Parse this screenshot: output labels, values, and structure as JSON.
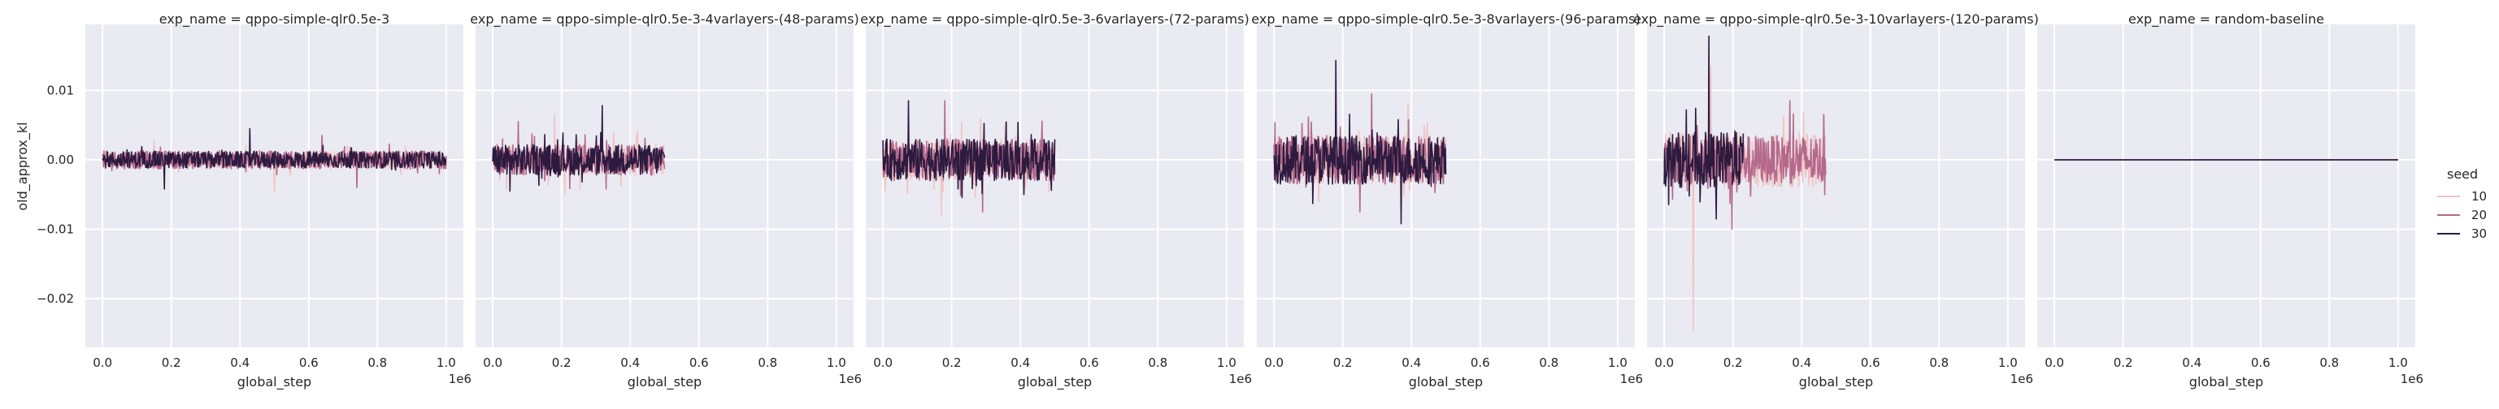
{
  "chart_data": {
    "type": "line",
    "ylabel": "old_approx_kl",
    "xlabel": "global_step",
    "x_offset_text": "1e6",
    "xlim": [
      -0.05,
      1.05
    ],
    "ylim": [
      -0.027,
      0.0195
    ],
    "xticks": [
      0.0,
      0.2,
      0.4,
      0.6,
      0.8,
      1.0
    ],
    "xtick_labels": [
      "0.0",
      "0.2",
      "0.4",
      "0.6",
      "0.8",
      "1.0"
    ],
    "yticks": [
      0.01,
      0.0,
      -0.01,
      -0.02
    ],
    "ytick_labels": [
      "0.01",
      "0.00",
      "−0.01",
      "−0.02"
    ],
    "grid": true,
    "legend": {
      "title": "seed",
      "placement": "right",
      "entries": [
        {
          "label": "10",
          "color": "#f0c4c3"
        },
        {
          "label": "20",
          "color": "#b4698c"
        },
        {
          "label": "30",
          "color": "#2d1b3f"
        }
      ]
    },
    "panels": [
      {
        "title": "exp_name = qppo-simple-qlr0.5e-3",
        "series": [
          {
            "seed": "10",
            "x_end": 1.0,
            "center": 0.0,
            "amp": 0.0012,
            "spike_max": 0.0028,
            "spike_min": -0.0045
          },
          {
            "seed": "20",
            "x_end": 1.0,
            "center": 0.0,
            "amp": 0.0013,
            "spike_max": 0.0035,
            "spike_min": -0.004
          },
          {
            "seed": "30",
            "x_end": 1.0,
            "center": 0.0,
            "amp": 0.0012,
            "spike_max": 0.0045,
            "spike_min": -0.0042
          }
        ]
      },
      {
        "title": "exp_name = qppo-simple-qlr0.5e-3-4varlayers-(48-params)",
        "series": [
          {
            "seed": "10",
            "x_end": 0.5,
            "center": 0.0,
            "amp": 0.0022,
            "spike_max": 0.0065,
            "spike_min": -0.005
          },
          {
            "seed": "20",
            "x_end": 0.5,
            "center": 0.0,
            "amp": 0.0022,
            "spike_max": 0.0055,
            "spike_min": -0.0042
          },
          {
            "seed": "30",
            "x_end": 0.5,
            "center": 0.0,
            "amp": 0.0022,
            "spike_max": 0.0078,
            "spike_min": -0.0045
          }
        ]
      },
      {
        "title": "exp_name = qppo-simple-qlr0.5e-3-6varlayers-(72-params)",
        "series": [
          {
            "seed": "10",
            "x_end": 0.5,
            "center": 0.0,
            "amp": 0.003,
            "spike_max": 0.006,
            "spike_min": -0.008
          },
          {
            "seed": "20",
            "x_end": 0.5,
            "center": 0.0,
            "amp": 0.003,
            "spike_max": 0.0085,
            "spike_min": -0.0075
          },
          {
            "seed": "30",
            "x_end": 0.5,
            "center": 0.0,
            "amp": 0.003,
            "spike_max": 0.0085,
            "spike_min": -0.005
          }
        ]
      },
      {
        "title": "exp_name = qppo-simple-qlr0.5e-3-8varlayers-(96-params)",
        "series": [
          {
            "seed": "10",
            "x_end": 0.5,
            "center": 0.0,
            "amp": 0.0035,
            "spike_max": 0.008,
            "spike_min": -0.006
          },
          {
            "seed": "20",
            "x_end": 0.5,
            "center": 0.0,
            "amp": 0.0035,
            "spike_max": 0.0095,
            "spike_min": -0.0075
          },
          {
            "seed": "30",
            "x_end": 0.5,
            "center": 0.0,
            "amp": 0.0035,
            "spike_max": 0.0143,
            "spike_min": -0.0092
          }
        ]
      },
      {
        "title": "exp_name = qppo-simple-qlr0.5e-3-10varlayers-(120-params)",
        "series": [
          {
            "seed": "10",
            "x_end": 0.47,
            "center": 0.0,
            "amp": 0.004,
            "spike_max": 0.0135,
            "spike_min": -0.0245
          },
          {
            "seed": "20",
            "x_end": 0.47,
            "center": 0.0,
            "amp": 0.0035,
            "spike_max": 0.0085,
            "spike_min": -0.01
          },
          {
            "seed": "30",
            "x_end": 0.23,
            "center": 0.0,
            "amp": 0.004,
            "spike_max": 0.0178,
            "spike_min": -0.0085
          }
        ]
      },
      {
        "title": "exp_name = random-baseline",
        "series": [
          {
            "seed": "10",
            "x_end": 1.0,
            "center": 0.0,
            "amp": 0.0,
            "spike_max": 0.0,
            "spike_min": 0.0
          },
          {
            "seed": "20",
            "x_end": 1.0,
            "center": 0.0,
            "amp": 0.0,
            "spike_max": 0.0,
            "spike_min": 0.0
          },
          {
            "seed": "30",
            "x_end": 1.0,
            "center": 0.0,
            "amp": 0.0,
            "spike_max": 0.0,
            "spike_min": 0.0
          }
        ]
      }
    ]
  }
}
